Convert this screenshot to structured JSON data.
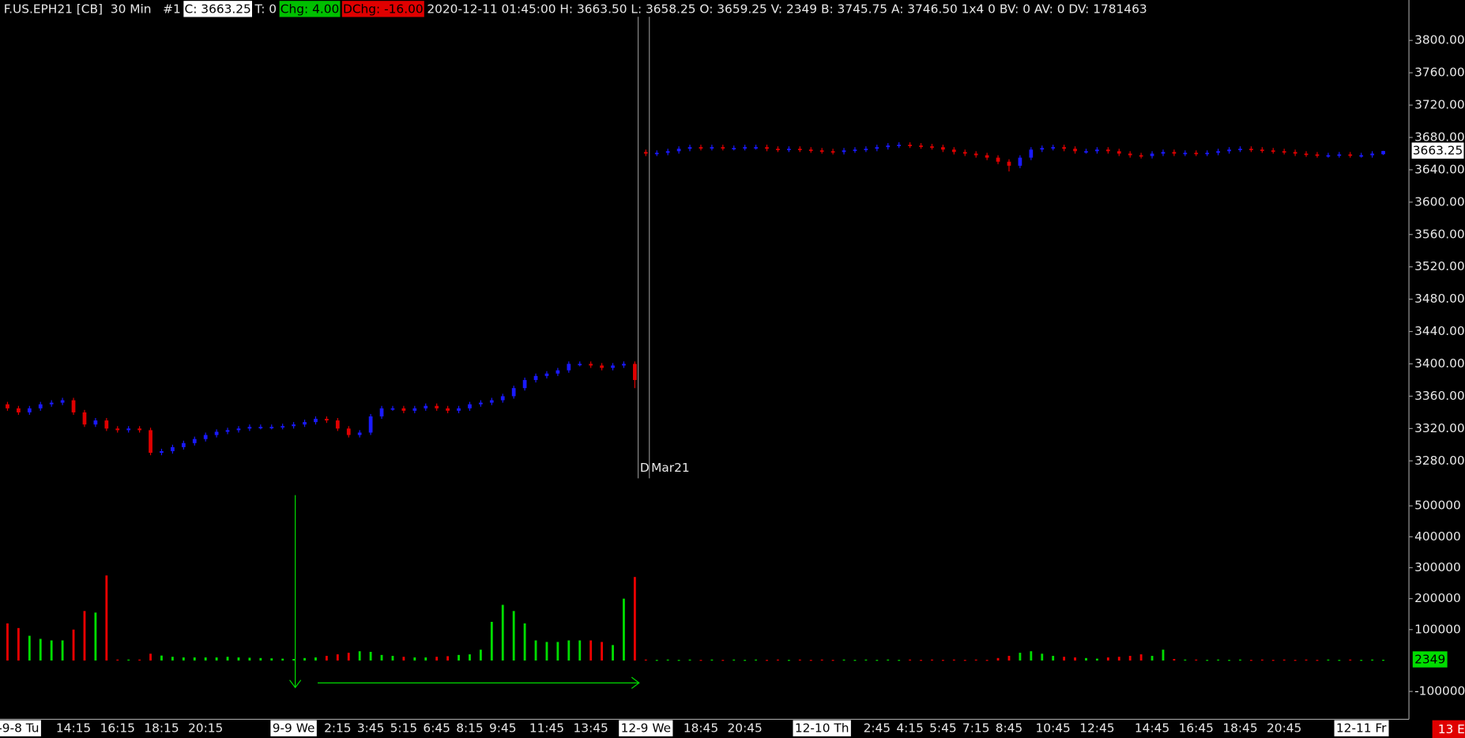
{
  "header": {
    "segments": [
      {
        "text": "F.US.EPH21 [CB]  30 Min   #1"
      },
      {
        "text": "C: 3663.25",
        "background": "#ffffff",
        "color": "#000000"
      },
      {
        "text": "T: 0"
      },
      {
        "text": "Chg: 4.00",
        "background": "#00c000",
        "color": "#000000"
      },
      {
        "text": "DChg: -16.00",
        "background": "#e00000",
        "color": "#000000"
      },
      {
        "text": "2020-12-11 01:45:00 H: 3663.50 L: 3658.25 O: 3659.25 V: 2349 B: 3745.75 A: 3746.50 1x4 0 BV: 0 AV: 0 DV: 1781463"
      }
    ]
  },
  "annotations": [
    "D",
    "Mar21"
  ],
  "status": "13 E",
  "chart_data": [
    {
      "type": "candlestick",
      "categories": [
        null,
        "-9-8 Tu",
        null,
        null,
        null,
        null,
        "14:15",
        null,
        null,
        null,
        "16:15",
        null,
        null,
        null,
        "18:15",
        null,
        null,
        null,
        "20:15",
        null,
        null,
        null,
        null,
        null,
        null,
        null,
        "9-9 We",
        null,
        null,
        null,
        "2:15",
        null,
        null,
        "3:45",
        null,
        null,
        "5:15",
        null,
        null,
        "6:45",
        null,
        null,
        "8:15",
        null,
        null,
        "9:45",
        null,
        null,
        null,
        "11:45",
        null,
        null,
        null,
        "13:45",
        null,
        null,
        null,
        null,
        "12-9 We",
        null,
        null,
        null,
        null,
        "18:45",
        null,
        null,
        null,
        "20:45",
        null,
        null,
        null,
        null,
        null,
        null,
        "12-10 Th",
        null,
        null,
        null,
        null,
        "2:45",
        null,
        null,
        "4:15",
        null,
        null,
        "5:45",
        null,
        null,
        "7:15",
        null,
        null,
        "8:45",
        null,
        null,
        null,
        "10:45",
        null,
        null,
        null,
        "12:45",
        null,
        null,
        null,
        null,
        "14:45",
        null,
        null,
        null,
        "16:45",
        null,
        null,
        null,
        "18:45",
        null,
        null,
        null,
        "20:45",
        null,
        null,
        null,
        null,
        null,
        null,
        "12-11 Fr",
        null,
        null
      ],
      "boxed_categories": [
        1,
        26,
        58,
        74,
        123
      ],
      "open": [
        3350,
        3345,
        3340,
        3345,
        3350,
        3352,
        3355,
        3340,
        3325,
        3330,
        3320,
        3318,
        3320,
        3318,
        3290,
        3292,
        3297,
        3302,
        3307,
        3312,
        3316,
        3318,
        3320,
        3322,
        3322,
        3322,
        3323,
        3325,
        3328,
        3332,
        3330,
        3320,
        3312,
        3315,
        3335,
        3345,
        3345,
        3342,
        3345,
        3348,
        3345,
        3342,
        3345,
        3350,
        3352,
        3355,
        3360,
        3370,
        3380,
        3385,
        3388,
        3392,
        3400,
        3400,
        3398,
        3395,
        3398,
        3400,
        3662,
        3660,
        3661,
        3663,
        3666,
        3668,
        3667,
        3668,
        3667,
        3667,
        3668,
        3668,
        3666,
        3665,
        3666,
        3665,
        3664,
        3663,
        3662,
        3664,
        3665,
        3666,
        3668,
        3670,
        3671,
        3670,
        3669,
        3668,
        3665,
        3662,
        3660,
        3658,
        3655,
        3650,
        3645,
        3655,
        3665,
        3667,
        3668,
        3666,
        3663,
        3663,
        3665,
        3663,
        3660,
        3658,
        3657,
        3660,
        3662,
        3660,
        3661,
        3660,
        3661,
        3663,
        3665,
        3666,
        3665,
        3664,
        3663,
        3662,
        3660,
        3659,
        3658,
        3658,
        3659,
        3658,
        3658,
        3659.25
      ],
      "high": [
        3353,
        3348,
        3348,
        3353,
        3355,
        3358,
        3358,
        3343,
        3333,
        3333,
        3323,
        3323,
        3323,
        3321,
        3295,
        3300,
        3305,
        3310,
        3315,
        3319,
        3321,
        3323,
        3325,
        3325,
        3325,
        3326,
        3328,
        3331,
        3335,
        3335,
        3333,
        3323,
        3318,
        3338,
        3348,
        3348,
        3348,
        3348,
        3351,
        3351,
        3348,
        3348,
        3353,
        3355,
        3358,
        3363,
        3373,
        3383,
        3388,
        3391,
        3395,
        3403,
        3403,
        3403,
        3401,
        3401,
        3403,
        3403,
        3665,
        3664,
        3666,
        3669,
        3671,
        3671,
        3671,
        3671,
        3670,
        3671,
        3671,
        3671,
        3669,
        3669,
        3669,
        3668,
        3667,
        3666,
        3667,
        3668,
        3669,
        3671,
        3673,
        3674,
        3674,
        3673,
        3672,
        3671,
        3668,
        3665,
        3663,
        3661,
        3658,
        3653,
        3658,
        3668,
        3670,
        3671,
        3671,
        3669,
        3666,
        3668,
        3668,
        3666,
        3663,
        3661,
        3663,
        3665,
        3665,
        3664,
        3664,
        3664,
        3666,
        3668,
        3669,
        3669,
        3668,
        3667,
        3666,
        3665,
        3663,
        3662,
        3661,
        3662,
        3662,
        3661,
        3663,
        3663.5
      ],
      "low": [
        3342,
        3337,
        3337,
        3342,
        3347,
        3349,
        3337,
        3322,
        3322,
        3317,
        3315,
        3315,
        3315,
        3287,
        3287,
        3289,
        3294,
        3299,
        3304,
        3309,
        3313,
        3315,
        3317,
        3319,
        3319,
        3319,
        3320,
        3322,
        3325,
        3327,
        3317,
        3309,
        3309,
        3312,
        3332,
        3342,
        3339,
        3339,
        3342,
        3342,
        3339,
        3339,
        3342,
        3347,
        3349,
        3352,
        3357,
        3367,
        3377,
        3382,
        3385,
        3389,
        3397,
        3395,
        3392,
        3392,
        3395,
        3370,
        3657,
        3657,
        3658,
        3660,
        3663,
        3664,
        3664,
        3664,
        3664,
        3664,
        3665,
        3663,
        3662,
        3662,
        3662,
        3661,
        3660,
        3659,
        3659,
        3661,
        3662,
        3663,
        3665,
        3667,
        3667,
        3666,
        3665,
        3662,
        3659,
        3657,
        3655,
        3652,
        3647,
        3638,
        3642,
        3652,
        3662,
        3664,
        3663,
        3660,
        3660,
        3660,
        3660,
        3657,
        3655,
        3654,
        3654,
        3657,
        3657,
        3657,
        3657,
        3657,
        3658,
        3660,
        3662,
        3662,
        3661,
        3660,
        3659,
        3657,
        3656,
        3655,
        3655,
        3655,
        3655,
        3655,
        3655,
        3658.25
      ],
      "close": [
        3345,
        3340,
        3345,
        3350,
        3352,
        3355,
        3340,
        3325,
        3330,
        3320,
        3318,
        3320,
        3318,
        3290,
        3292,
        3297,
        3302,
        3307,
        3312,
        3316,
        3318,
        3320,
        3322,
        3322,
        3322,
        3323,
        3325,
        3328,
        3332,
        3330,
        3320,
        3312,
        3315,
        3335,
        3345,
        3345,
        3342,
        3345,
        3348,
        3345,
        3342,
        3345,
        3350,
        3352,
        3355,
        3360,
        3370,
        3380,
        3385,
        3388,
        3392,
        3400,
        3400,
        3398,
        3395,
        3398,
        3400,
        3380,
        3660,
        3661,
        3663,
        3666,
        3668,
        3667,
        3668,
        3667,
        3667,
        3668,
        3668,
        3666,
        3665,
        3666,
        3665,
        3664,
        3663,
        3662,
        3664,
        3665,
        3666,
        3668,
        3670,
        3671,
        3670,
        3669,
        3668,
        3665,
        3662,
        3660,
        3658,
        3655,
        3650,
        3645,
        3655,
        3665,
        3667,
        3668,
        3666,
        3663,
        3663,
        3665,
        3663,
        3660,
        3658,
        3657,
        3660,
        3662,
        3660,
        3661,
        3660,
        3661,
        3663,
        3665,
        3666,
        3665,
        3664,
        3663,
        3662,
        3660,
        3659,
        3658,
        3658,
        3659,
        3658,
        3658,
        3660,
        3663.25
      ],
      "up_color": "#1a1aff",
      "down_color": "#e00000",
      "ylim": [
        3255,
        3850
      ],
      "yticks": [
        {
          "value": 3280,
          "label": "3280.00"
        },
        {
          "value": 3320,
          "label": "3320.00"
        },
        {
          "value": 3360,
          "label": "3360.00"
        },
        {
          "value": 3400,
          "label": "3400.00"
        },
        {
          "value": 3440,
          "label": "3440.00"
        },
        {
          "value": 3480,
          "label": "3480.00"
        },
        {
          "value": 3520,
          "label": "3520.00"
        },
        {
          "value": 3560,
          "label": "3560.00"
        },
        {
          "value": 3600,
          "label": "3600.00"
        },
        {
          "value": 3640,
          "label": "3640.00"
        },
        {
          "value": 3680,
          "label": "3680.00"
        },
        {
          "value": 3720,
          "label": "3720.00"
        },
        {
          "value": 3760,
          "label": "3760.00"
        },
        {
          "value": 3800,
          "label": "3800.00"
        }
      ],
      "last_label_background": "#ffffff"
    },
    {
      "type": "bar",
      "values": [
        120000,
        105000,
        80000,
        70000,
        65000,
        65000,
        100000,
        160000,
        155000,
        275000,
        3000,
        3000,
        3000,
        22000,
        16000,
        12000,
        10000,
        10000,
        10000,
        10000,
        12000,
        10000,
        9000,
        8000,
        7000,
        6000,
        5000,
        8000,
        10000,
        15000,
        20000,
        25000,
        30000,
        28000,
        18000,
        15000,
        12000,
        10000,
        10000,
        12000,
        14000,
        18000,
        20000,
        35000,
        125000,
        180000,
        160000,
        120000,
        65000,
        60000,
        60000,
        65000,
        65000,
        65000,
        60000,
        50000,
        200000,
        270000,
        3000,
        2000,
        3000,
        2000,
        3000,
        2000,
        3000,
        2000,
        3000,
        2000,
        3000,
        2000,
        3000,
        2000,
        3000,
        2000,
        3000,
        2000,
        3000,
        2000,
        3000,
        2000,
        3000,
        2000,
        3000,
        2000,
        3000,
        2000,
        3000,
        2000,
        3000,
        2000,
        8000,
        15000,
        25000,
        30000,
        22000,
        15000,
        12000,
        10000,
        8000,
        6000,
        10000,
        12000,
        15000,
        20000,
        15000,
        35000,
        5000,
        3000,
        3000,
        2000,
        3000,
        2000,
        3000,
        2000,
        3000,
        2000,
        3000,
        2000,
        3000,
        2000,
        3000,
        2000,
        3000,
        2000,
        3000,
        2349
      ],
      "up_color": "#00dd00",
      "down_color": "#ee0000",
      "ylim": [
        -175000,
        580000
      ],
      "yticks": [
        -100000,
        100000,
        200000,
        300000,
        400000,
        500000
      ],
      "last_label_background": "#00dd00"
    }
  ]
}
